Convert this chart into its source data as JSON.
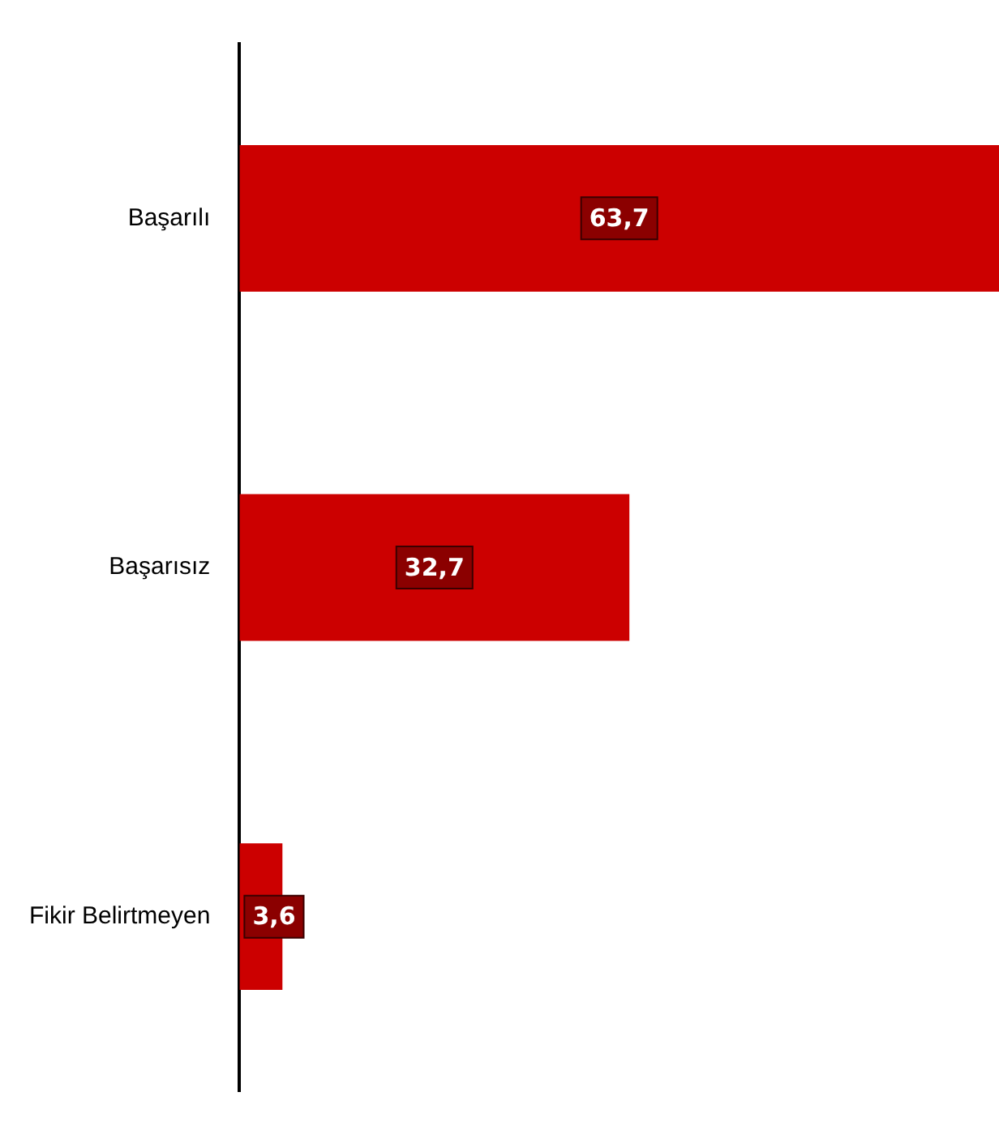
{
  "chart_data": {
    "type": "bar",
    "orientation": "horizontal",
    "categories": [
      "Başarılı",
      "Başarısız",
      "Fikir Belirtmeyen"
    ],
    "values": [
      63.7,
      32.7,
      3.6
    ],
    "value_labels": [
      "63,7",
      "32,7",
      "3,6"
    ],
    "color": "#cc0000",
    "grid": false,
    "legend": false,
    "tick_labels": "y"
  }
}
